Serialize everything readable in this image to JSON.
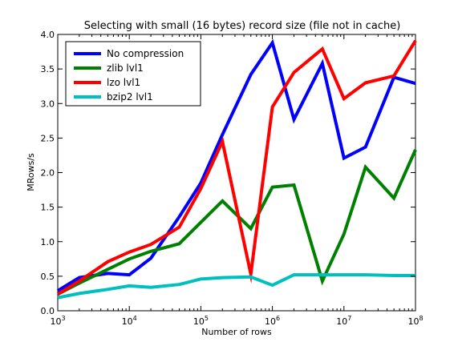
{
  "chart_data": {
    "type": "line",
    "title": "Selecting with small (16 bytes) record size (file not in cache)",
    "xlabel": "Number of rows",
    "ylabel": "MRows/s",
    "xscale": "log",
    "xlim": [
      1000,
      100000000
    ],
    "ylim": [
      0.0,
      4.0
    ],
    "x_ticks": [
      {
        "base": "10",
        "exp": "3"
      },
      {
        "base": "10",
        "exp": "4"
      },
      {
        "base": "10",
        "exp": "5"
      },
      {
        "base": "10",
        "exp": "6"
      },
      {
        "base": "10",
        "exp": "7"
      },
      {
        "base": "10",
        "exp": "8"
      }
    ],
    "y_ticks": [
      "0.0",
      "0.5",
      "1.0",
      "1.5",
      "2.0",
      "2.5",
      "3.0",
      "3.5",
      "4.0"
    ],
    "x": [
      1000,
      2000,
      5000,
      10000,
      20000,
      50000,
      100000,
      200000,
      500000,
      1000000,
      2000000,
      5000000,
      10000000,
      20000000,
      50000000,
      100000000
    ],
    "legend_position": "top-left",
    "grid": false,
    "series": [
      {
        "name": "No compression",
        "color": "#0000ff",
        "values": [
          0.29,
          0.48,
          0.54,
          0.52,
          0.76,
          1.36,
          1.85,
          2.55,
          3.42,
          3.88,
          2.77,
          3.58,
          2.21,
          2.37,
          3.38,
          3.29
        ]
      },
      {
        "name": "zlib lvl1",
        "color": "#008000",
        "values": [
          0.24,
          0.4,
          0.6,
          0.75,
          0.86,
          0.97,
          1.28,
          1.59,
          1.19,
          1.79,
          1.82,
          0.43,
          1.11,
          2.08,
          1.63,
          2.33
        ]
      },
      {
        "name": "lzo lvl1",
        "color": "#ff0000",
        "values": [
          0.24,
          0.43,
          0.71,
          0.85,
          0.96,
          1.21,
          1.77,
          2.45,
          0.53,
          2.95,
          3.45,
          3.79,
          3.07,
          3.3,
          3.4,
          3.91
        ]
      },
      {
        "name": "bzip2 lvl1",
        "color": "#00bfbf",
        "values": [
          0.19,
          0.25,
          0.31,
          0.36,
          0.34,
          0.38,
          0.46,
          0.48,
          0.49,
          0.37,
          0.52,
          0.52,
          0.52,
          0.52,
          0.51,
          0.51
        ]
      }
    ]
  }
}
